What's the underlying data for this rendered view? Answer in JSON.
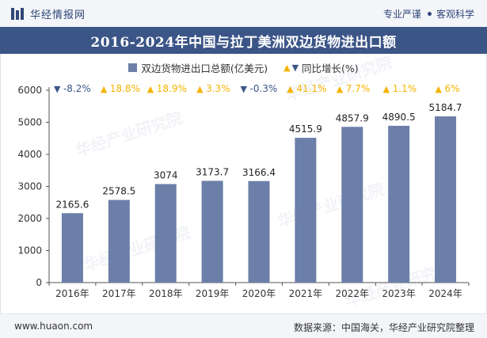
{
  "header": {
    "brand_name": "华经情报网",
    "tagline_left": "专业严谨",
    "tagline_right": "客观科学"
  },
  "chart_data": {
    "type": "bar",
    "title": "2016-2024年中国与拉丁美洲双边货物进出口额",
    "categories": [
      "2016年",
      "2017年",
      "2018年",
      "2019年",
      "2020年",
      "2021年",
      "2022年",
      "2023年",
      "2024年"
    ],
    "series": [
      {
        "name": "双边货物进出口总额(亿美元)",
        "values": [
          2165.6,
          2578.5,
          3074,
          3173.7,
          3166.4,
          4515.9,
          4857.9,
          4890.5,
          5184.7
        ],
        "labels": [
          "2165.6",
          "2578.5",
          "3074",
          "3173.7",
          "3166.4",
          "4515.9",
          "4857.9",
          "4890.5",
          "5184.7"
        ],
        "color": "#6b7fa8"
      },
      {
        "name": "同比增长(%)",
        "values": [
          -8.2,
          18.8,
          18.9,
          3.3,
          -0.3,
          41.1,
          7.7,
          1.1,
          6
        ],
        "labels": [
          "-8.2%",
          "18.8%",
          "18.9%",
          "3.3%",
          "-0.3%",
          "41.1%",
          "7.7%",
          "1.1%",
          "6%"
        ],
        "up_color": "#f4b400",
        "down_color": "#3b5587"
      }
    ],
    "yticks": [
      0,
      1000,
      2000,
      3000,
      4000,
      5000,
      6000
    ],
    "ylim": [
      0,
      6000
    ],
    "xlabel": "",
    "ylabel": "",
    "grid": false
  },
  "watermark": "华经产业研究院",
  "footer": {
    "url": "www.huaon.com",
    "source": "数据来源：中国海关，华经产业研究院整理"
  }
}
